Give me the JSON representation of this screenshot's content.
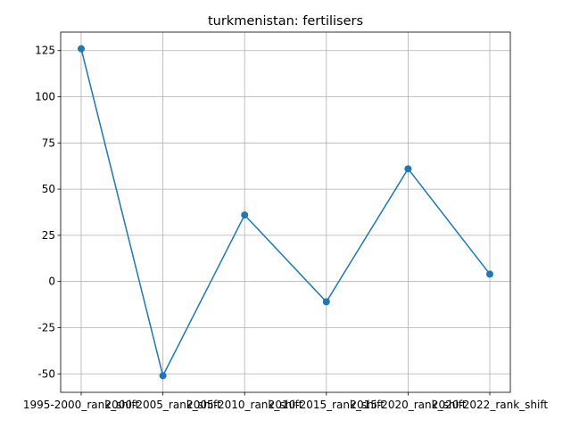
{
  "chart_data": {
    "type": "line",
    "title": "turkmenistan: fertilisers",
    "xlabel": "",
    "ylabel": "",
    "categories": [
      "1995-2000_rank_shift",
      "2000-2005_rank_shift",
      "2005-2010_rank_shift",
      "2010-2015_rank_shift",
      "2015-2020_rank_shift",
      "2020-2022_rank_shift"
    ],
    "series": [
      {
        "values": [
          126,
          -51,
          36,
          -11,
          61,
          4
        ],
        "color": "#1f77b4"
      }
    ],
    "ylim": [
      -60,
      135
    ],
    "yticks": [
      -50,
      -25,
      0,
      25,
      50,
      75,
      100,
      125
    ],
    "grid": true,
    "legend": "none"
  }
}
